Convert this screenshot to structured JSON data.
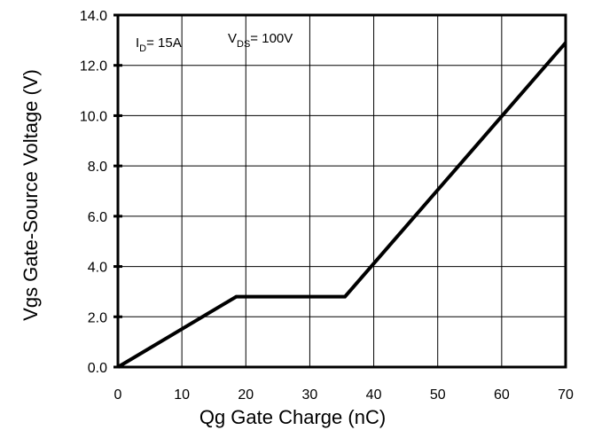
{
  "chart_data": {
    "type": "line",
    "title": "",
    "xlabel": "Qg Gate Charge (nC)",
    "ylabel": "Vgs Gate-Source Voltage (V)",
    "xlim": [
      0,
      70
    ],
    "ylim": [
      0,
      14
    ],
    "grid": true,
    "xticks": [
      0,
      10,
      20,
      30,
      40,
      50,
      60,
      70
    ],
    "yticks": [
      0,
      2,
      4,
      6,
      8,
      10,
      12,
      14
    ],
    "xtick_labels": [
      "0",
      "10",
      "20",
      "30",
      "40",
      "50",
      "60",
      "70"
    ],
    "ytick_labels": [
      "0.0",
      "2.0",
      "4.0",
      "6.0",
      "8.0",
      "10.0",
      "12.0",
      "14.0"
    ],
    "series": [
      {
        "color": "#000000",
        "x": [
          0,
          18.5,
          35.5,
          70
        ],
        "y": [
          0,
          2.8,
          2.8,
          12.9
        ]
      }
    ],
    "annotations": [
      {
        "symbol": "I",
        "sub": "D",
        "text": "= 15A"
      },
      {
        "symbol": "V",
        "sub": "DS",
        "text": "= 100V"
      }
    ]
  }
}
